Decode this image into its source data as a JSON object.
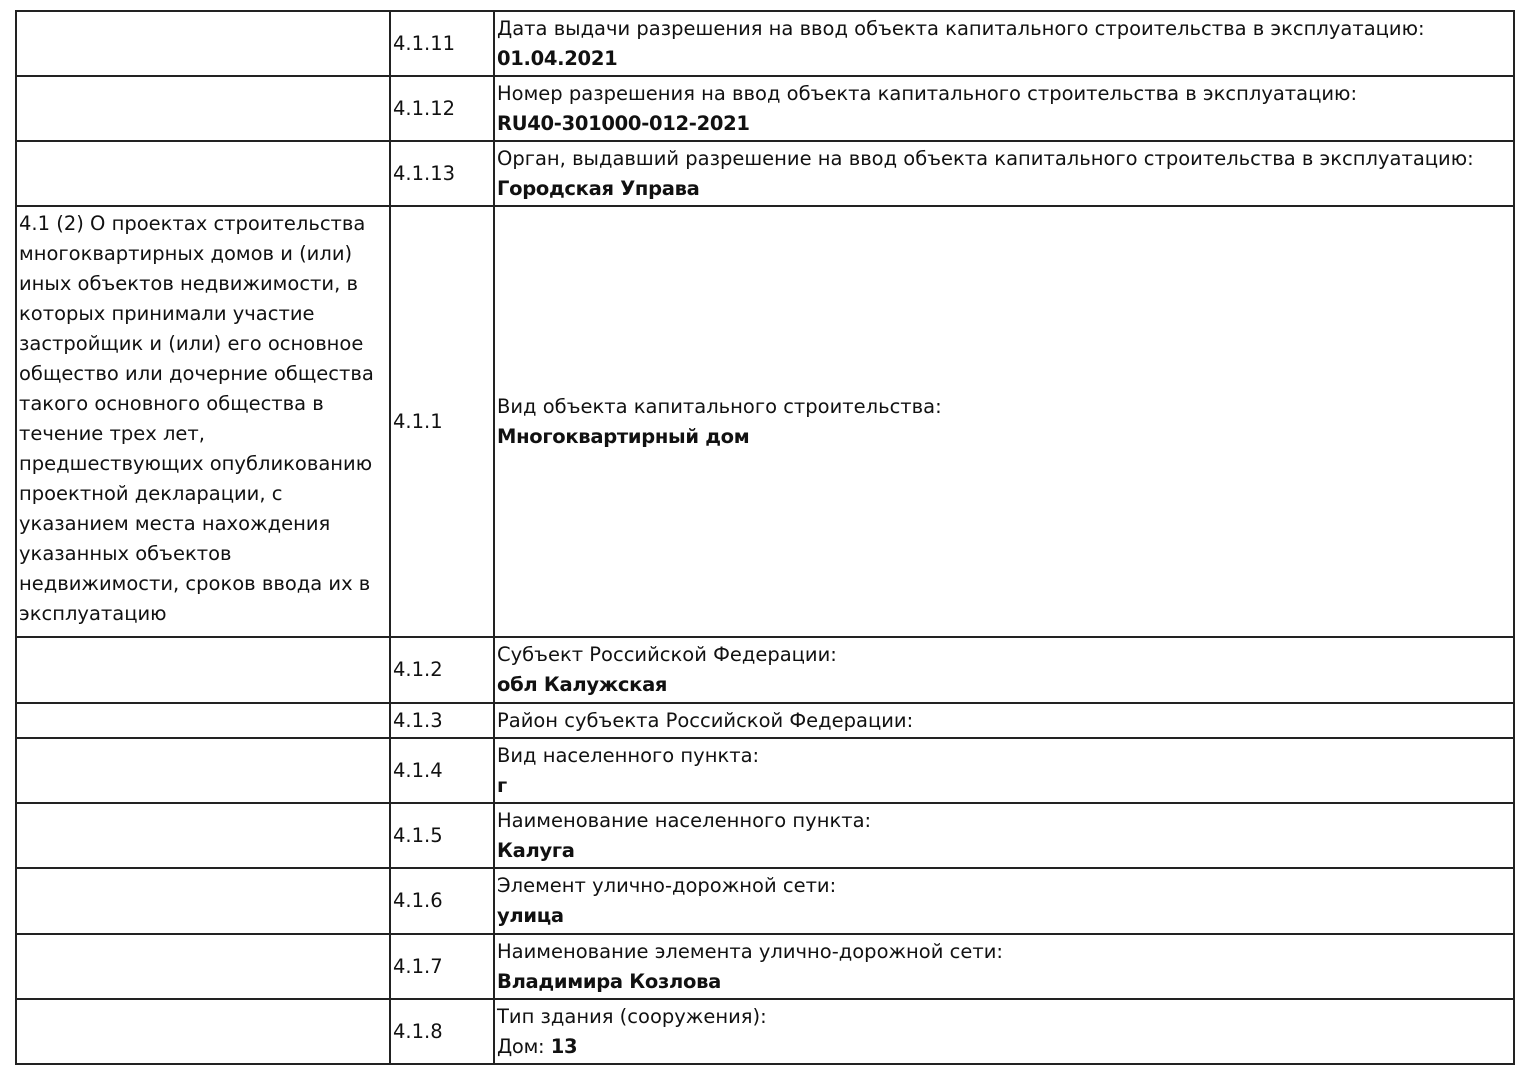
{
  "rows": [
    {
      "section": "",
      "code": "4.1.11",
      "label": "Дата выдачи разрешения на ввод объекта капитального строительства в эксплуатацию:",
      "value": "01.04.2021"
    },
    {
      "section": "",
      "code": "4.1.12",
      "label": "Номер разрешения на ввод объекта капитального строительства в эксплуатацию:",
      "value": "RU40-301000-012-2021"
    },
    {
      "section": "",
      "code": "4.1.13",
      "label": "Орган, выдавший разрешение на ввод объекта капитального строительства в эксплуатацию:",
      "value": "Городская Управа"
    },
    {
      "section": "4.1 (2) О проектах строительства многоквартирных домов и (или) иных объектов недвижимости, в которых принимали участие застройщик и (или) его основное общество или дочерние общества такого основного общества в течение трех лет, предшествующих опубликованию проектной декларации, с указанием места нахождения указанных объектов недвижимости, сроков ввода их в эксплуатацию",
      "code": "4.1.1",
      "label": "Вид объекта капитального строительства:",
      "value": "Многоквартирный дом"
    },
    {
      "section": "",
      "code": "4.1.2",
      "label": "Субъект Российской Федерации:",
      "value": "обл Калужская"
    },
    {
      "section": "",
      "code": "4.1.3",
      "label": "Район субъекта Российской Федерации:",
      "value": ""
    },
    {
      "section": "",
      "code": "4.1.4",
      "label": "Вид населенного пункта:",
      "value": "г"
    },
    {
      "section": "",
      "code": "4.1.5",
      "label": "Наименование населенного пункта:",
      "value": "Калуга"
    },
    {
      "section": "",
      "code": "4.1.6",
      "label": "Элемент улично-дорожной сети:",
      "value": "улица"
    },
    {
      "section": "",
      "code": "4.1.7",
      "label": "Наименование элемента улично-дорожной сети:",
      "value": "Владимира Козлова"
    },
    {
      "section": "",
      "code": "4.1.8",
      "label": "Тип здания (сооружения):",
      "value_prefix": "Дом:",
      "value": "13"
    }
  ]
}
